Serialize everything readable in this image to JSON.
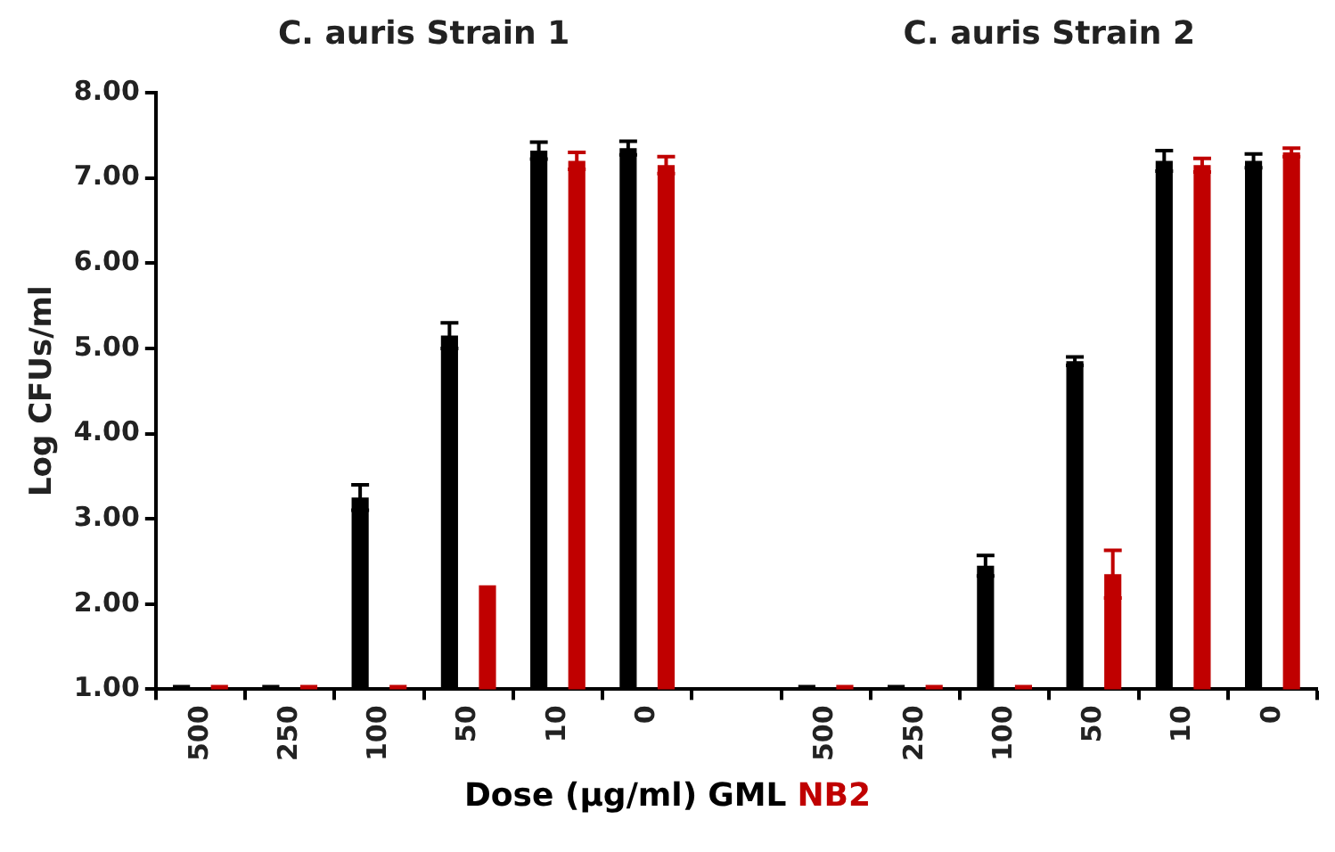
{
  "chart_data": {
    "type": "bar",
    "annotations": [
      "C. auris Strain 1",
      "C. auris Strain 2"
    ],
    "ylabel": "Log CFUs/ml",
    "xlabel": "Dose (µg/ml)",
    "categories": [
      "500",
      "250",
      "100",
      "50",
      "10",
      "0",
      null,
      "500",
      "250",
      "100",
      "50",
      "10",
      "0"
    ],
    "series": [
      {
        "name": "GML",
        "color": "#000000",
        "values": [
          1.05,
          1.05,
          3.25,
          5.15,
          7.32,
          7.35,
          null,
          1.05,
          1.05,
          2.45,
          4.85,
          7.2,
          7.2
        ],
        "errors": [
          null,
          null,
          0.15,
          0.15,
          0.1,
          0.08,
          null,
          null,
          null,
          0.12,
          0.05,
          0.12,
          0.08
        ]
      },
      {
        "name": "NB2",
        "color": "#c00000",
        "values": [
          1.05,
          1.05,
          1.05,
          2.22,
          7.2,
          7.15,
          null,
          1.05,
          1.05,
          1.05,
          2.35,
          7.15,
          7.3
        ],
        "errors": [
          null,
          null,
          null,
          null,
          0.1,
          0.1,
          null,
          null,
          null,
          null,
          0.28,
          0.08,
          0.05
        ]
      }
    ],
    "ylim": [
      1,
      8
    ],
    "yticks": [
      {
        "value": 1,
        "label": "1.00"
      },
      {
        "value": 2,
        "label": "2.00"
      },
      {
        "value": 3,
        "label": "3.00"
      },
      {
        "value": 4,
        "label": "4.00"
      },
      {
        "value": 5,
        "label": "5.00"
      },
      {
        "value": 6,
        "label": "6.00"
      },
      {
        "value": 7,
        "label": "7.00"
      },
      {
        "value": 8,
        "label": "8.00"
      }
    ],
    "legend": "bottom"
  }
}
